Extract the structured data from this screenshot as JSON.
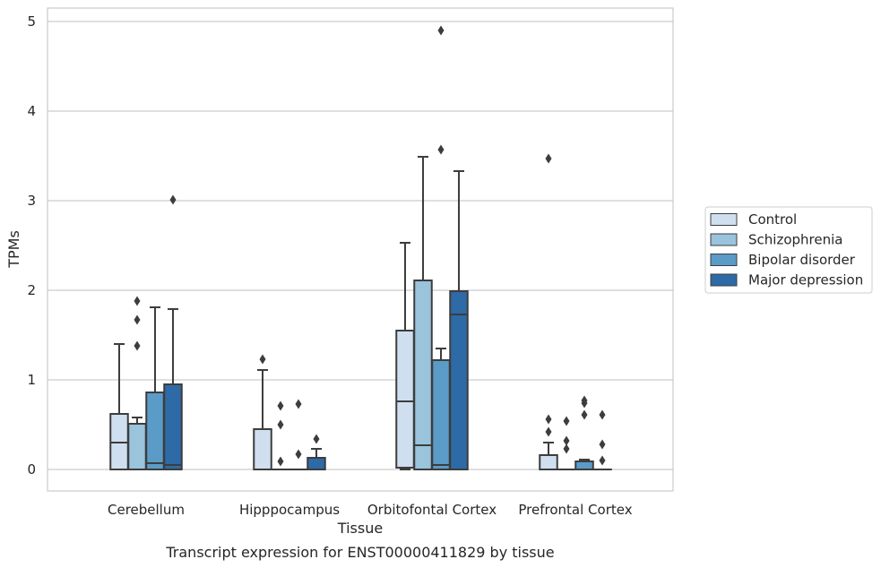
{
  "chart_data": {
    "type": "box",
    "title": "",
    "caption": "Transcript expression for ENST00000411829 by tissue",
    "xlabel": "Tissue",
    "ylabel": "TPMs",
    "ylim": [
      -0.24,
      5.15
    ],
    "yticks": [
      0,
      1,
      2,
      3,
      4,
      5
    ],
    "grid": "horizontal",
    "legend_position": "right",
    "categories": [
      "Cerebellum",
      "Hipppocampus",
      "Orbitofontal Cortex",
      "Prefrontal Cortex"
    ],
    "series": [
      {
        "name": "Control",
        "color": "#cfdff0",
        "boxes": [
          {
            "whisker_low": 0,
            "q1": 0,
            "median": 0.3,
            "q3": 0.62,
            "whisker_high": 1.4,
            "outliers": []
          },
          {
            "whisker_low": 0,
            "q1": 0,
            "median": 0,
            "q3": 0.45,
            "whisker_high": 1.11,
            "outliers": [
              1.23
            ]
          },
          {
            "whisker_low": 0,
            "q1": 0.02,
            "median": 0.76,
            "q3": 1.55,
            "whisker_high": 2.53,
            "outliers": []
          },
          {
            "whisker_low": 0,
            "q1": 0,
            "median": 0,
            "q3": 0.16,
            "whisker_high": 0.3,
            "outliers": [
              0.42,
              0.56,
              3.47
            ]
          }
        ]
      },
      {
        "name": "Schizophrenia",
        "color": "#9ac3dc",
        "boxes": [
          {
            "whisker_low": 0,
            "q1": 0,
            "median": 0.51,
            "q3": 0.51,
            "whisker_high": 0.58,
            "outliers": [
              1.38,
              1.67,
              1.88
            ]
          },
          {
            "whisker_low": 0,
            "q1": 0,
            "median": 0,
            "q3": 0,
            "whisker_high": 0,
            "outliers": [
              0.09,
              0.5,
              0.71
            ]
          },
          {
            "whisker_low": 0,
            "q1": 0,
            "median": 0.27,
            "q3": 2.11,
            "whisker_high": 3.49,
            "outliers": []
          },
          {
            "whisker_low": 0,
            "q1": 0,
            "median": 0,
            "q3": 0,
            "whisker_high": 0,
            "outliers": [
              0.23,
              0.32,
              0.54
            ]
          }
        ]
      },
      {
        "name": "Bipolar disorder",
        "color": "#5b9bc8",
        "boxes": [
          {
            "whisker_low": 0,
            "q1": 0,
            "median": 0.07,
            "q3": 0.86,
            "whisker_high": 1.81,
            "outliers": []
          },
          {
            "whisker_low": 0,
            "q1": 0,
            "median": 0,
            "q3": 0,
            "whisker_high": 0,
            "outliers": [
              0.17,
              0.73
            ]
          },
          {
            "whisker_low": 0,
            "q1": 0,
            "median": 0.05,
            "q3": 1.22,
            "whisker_high": 1.35,
            "outliers": [
              3.57,
              4.9
            ]
          },
          {
            "whisker_low": 0,
            "q1": 0,
            "median": 0,
            "q3": 0.09,
            "whisker_high": 0.11,
            "outliers": [
              0.61,
              0.74,
              0.77
            ]
          }
        ]
      },
      {
        "name": "Major depression",
        "color": "#2d6aa6",
        "boxes": [
          {
            "whisker_low": 0,
            "q1": 0,
            "median": 0.05,
            "q3": 0.95,
            "whisker_high": 1.79,
            "outliers": [
              3.01
            ]
          },
          {
            "whisker_low": 0,
            "q1": 0,
            "median": 0,
            "q3": 0.13,
            "whisker_high": 0.23,
            "outliers": [
              0.34
            ]
          },
          {
            "whisker_low": 0,
            "q1": 0,
            "median": 1.73,
            "q3": 1.99,
            "whisker_high": 3.33,
            "outliers": []
          },
          {
            "whisker_low": 0,
            "q1": 0,
            "median": 0,
            "q3": 0,
            "whisker_high": 0,
            "outliers": [
              0.1,
              0.28,
              0.61
            ]
          }
        ]
      }
    ]
  }
}
